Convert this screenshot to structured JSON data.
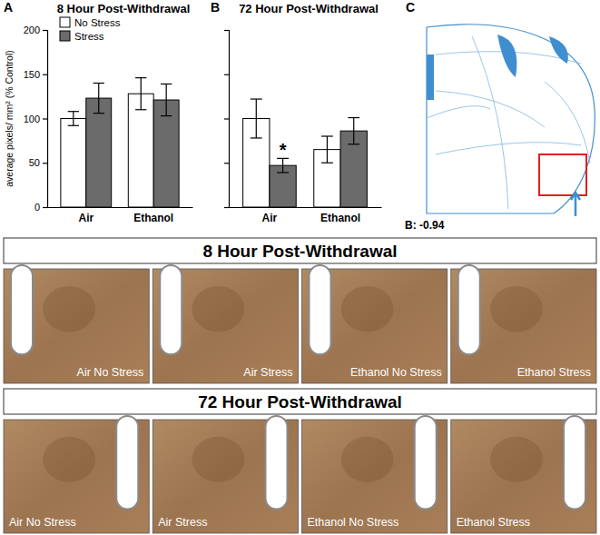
{
  "chart_data": [
    {
      "type": "bar",
      "panel": "A",
      "title": "8 Hour Post-Withdrawal",
      "y_label": "average pixels/ mm² (% Control)",
      "categories": [
        "Air",
        "Ethanol"
      ],
      "series": [
        {
          "name": "No Stress",
          "color": "#ffffff",
          "values": [
            100,
            128
          ],
          "errors": [
            8,
            18
          ]
        },
        {
          "name": "Stress",
          "color": "#6b6b6b",
          "values": [
            123,
            121
          ],
          "errors": [
            17,
            18
          ]
        }
      ],
      "ylim": [
        0,
        200
      ],
      "yticks": [
        0,
        50,
        100,
        150,
        200
      ],
      "legend": "top-left"
    },
    {
      "type": "bar",
      "panel": "B",
      "title": "72 Hour Post-Withdrawal",
      "categories": [
        "Air",
        "Ethanol"
      ],
      "series": [
        {
          "color": "#ffffff",
          "values": [
            100,
            65
          ],
          "errors": [
            22,
            15
          ]
        },
        {
          "color": "#6b6b6b",
          "values": [
            47,
            86
          ],
          "errors": [
            8,
            15
          ]
        }
      ],
      "ylim": [
        0,
        200
      ],
      "yticks": [
        0,
        50,
        100,
        150,
        200
      ],
      "tick_labels": "x",
      "annotations": [
        {
          "text": "*",
          "category": "Air",
          "series": 1
        }
      ]
    }
  ],
  "atlas": {
    "panel": "C",
    "caption": "B: -0.94"
  },
  "sections": [
    {
      "title": "8 Hour Post-Withdrawal",
      "images": [
        "Air No Stress",
        "Air Stress",
        "Ethanol No Stress",
        "Ethanol Stress"
      ]
    },
    {
      "title": "72 Hour Post-Withdrawal",
      "images": [
        "Air No Stress",
        "Air Stress",
        "Ethanol No Stress",
        "Ethanol Stress"
      ]
    }
  ]
}
